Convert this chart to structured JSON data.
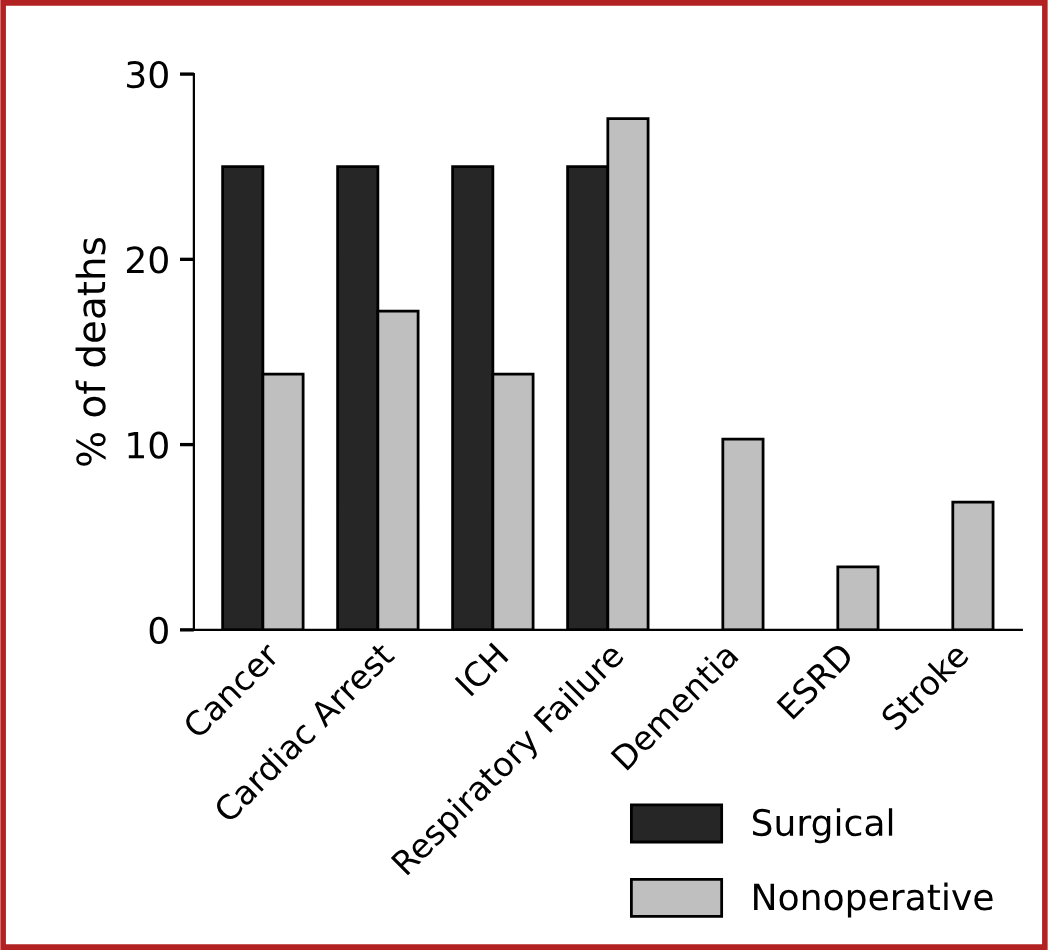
{
  "chart_data": {
    "type": "bar",
    "ylabel": "% of deaths",
    "categories": [
      "Cancer",
      "Cardiac Arrest",
      "ICH",
      "Respiratory Failure",
      "Dementia",
      "ESRD",
      "Stroke"
    ],
    "series": [
      {
        "name": "Surgical",
        "color": "#262626",
        "values": [
          25,
          25,
          25,
          25,
          null,
          null,
          null
        ]
      },
      {
        "name": "Nonoperative",
        "color": "#bfbfbf",
        "values": [
          13.8,
          17.2,
          13.8,
          27.6,
          10.3,
          3.4,
          6.9
        ]
      }
    ],
    "ylim": [
      0,
      30
    ],
    "yticks": [
      0,
      10,
      20,
      30
    ],
    "grid": false,
    "legend": "bottom right"
  }
}
